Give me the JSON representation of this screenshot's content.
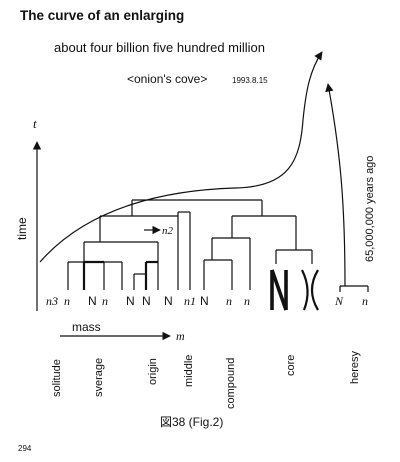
{
  "header": {
    "title": "The curve of an enlarging",
    "subtitle": "about four billion five hundred million",
    "caption": "<onion's cove>",
    "date": "1993.8.15"
  },
  "axes": {
    "t_symbol": "t",
    "time_label": "time",
    "mass_label": "mass",
    "m_symbol": "m"
  },
  "annotations": {
    "years_ago": "65,000,000 years ago",
    "n2": "n2",
    "n1": "n1"
  },
  "leaves": {
    "l0": "n3",
    "l1": "n",
    "l2": "N",
    "l3": "n",
    "l4": "N",
    "l5": "N",
    "l6": "N",
    "l7": "n1",
    "l8": "N",
    "l9": "n",
    "l10": "n",
    "l11": "N",
    "l12": "X",
    "l13": "N",
    "l14": "n"
  },
  "categories": [
    "solitude",
    "sverage",
    "origin",
    "middle",
    "compound",
    "core",
    "heresy"
  ],
  "figure_caption": "図38 (Fig.2)",
  "page_number": "294"
}
